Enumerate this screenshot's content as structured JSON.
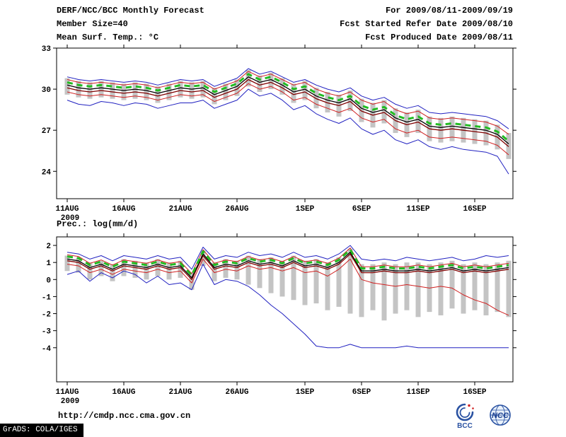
{
  "header": {
    "title": "DERF/NCC/BCC Monthly Forecast",
    "member_size": "Member Size=40",
    "for_range": "For 2009/08/11-2009/09/19",
    "refer_date": "Fcst Started Refer Date 2009/08/10",
    "produced_date": "Fcst Produced Date 2009/08/11"
  },
  "footer": {
    "url": "http://cmdp.ncc.cma.gov.cn",
    "grads": "GrADS: COLA/IGES",
    "bcc_label": "BCC",
    "ncc_label": "NCC"
  },
  "colors": {
    "frame": "#000000",
    "spread_bar": "#c4c4c4",
    "blue": "#2020c0",
    "red": "#d02020",
    "maroon": "#800000",
    "black": "#000000",
    "green": "#22bb22",
    "logo_blue": "#2a52a2"
  },
  "chart_data": [
    {
      "id": "temperature",
      "type": "line",
      "title": "Mean Surf. Temp.: °C",
      "year_label": "2009",
      "n_days": 40,
      "x_tick_labels": [
        "11AUG",
        "16AUG",
        "21AUG",
        "26AUG",
        "1SEP",
        "6SEP",
        "11SEP",
        "16SEP"
      ],
      "x_tick_days": [
        0,
        5,
        10,
        15,
        21,
        26,
        31,
        36
      ],
      "y_ticks": [
        33,
        30,
        27,
        24
      ],
      "ylim": [
        22,
        33
      ],
      "grid": false,
      "bars": {
        "name": "ensemble-spread",
        "color": "#c4c4c4",
        "low": [
          29.6,
          29.4,
          29.3,
          29.4,
          29.3,
          29.2,
          29.3,
          29.2,
          29.0,
          29.2,
          29.4,
          29.3,
          29.4,
          28.9,
          29.2,
          29.5,
          30.2,
          29.8,
          30.0,
          29.6,
          29.0,
          29.2,
          28.6,
          28.3,
          28.0,
          28.4,
          27.6,
          27.2,
          27.5,
          26.8,
          26.5,
          26.8,
          26.2,
          26.1,
          26.2,
          26.1,
          26.0,
          25.9,
          25.6,
          24.9
        ],
        "high": [
          30.8,
          30.6,
          30.5,
          30.6,
          30.5,
          30.4,
          30.5,
          30.4,
          30.2,
          30.4,
          30.6,
          30.5,
          30.6,
          30.1,
          30.4,
          30.7,
          31.4,
          31.0,
          31.2,
          30.8,
          30.4,
          30.6,
          30.1,
          29.8,
          29.6,
          29.9,
          29.3,
          29.0,
          29.2,
          28.6,
          28.3,
          28.5,
          28.0,
          27.9,
          28.0,
          27.9,
          27.8,
          27.7,
          27.4,
          26.8
        ]
      },
      "series": [
        {
          "name": "envelope-max-blue",
          "color": "#2020c0",
          "width": 1,
          "dash": "",
          "values": [
            30.9,
            30.7,
            30.6,
            30.7,
            30.6,
            30.5,
            30.6,
            30.5,
            30.3,
            30.5,
            30.7,
            30.6,
            30.7,
            30.2,
            30.5,
            30.8,
            31.5,
            31.1,
            31.3,
            30.9,
            30.5,
            30.7,
            30.3,
            30.0,
            29.8,
            30.1,
            29.5,
            29.2,
            29.4,
            28.9,
            28.6,
            28.8,
            28.3,
            28.2,
            28.3,
            28.2,
            28.1,
            28.0,
            27.7,
            27.1
          ]
        },
        {
          "name": "envelope-min-blue",
          "color": "#2020c0",
          "width": 1,
          "dash": "",
          "values": [
            29.2,
            28.9,
            28.8,
            29.1,
            29.0,
            28.8,
            29.0,
            28.9,
            28.6,
            28.8,
            29.0,
            29.0,
            29.2,
            28.6,
            28.9,
            29.2,
            30.0,
            29.5,
            29.7,
            29.2,
            28.5,
            28.8,
            28.2,
            27.8,
            27.5,
            27.9,
            27.1,
            26.7,
            27.0,
            26.3,
            26.0,
            26.3,
            25.8,
            25.6,
            25.8,
            25.6,
            25.5,
            25.4,
            25.1,
            23.8
          ]
        },
        {
          "name": "upper-percentile-red",
          "color": "#d02020",
          "width": 1,
          "dash": "",
          "values": [
            30.7,
            30.5,
            30.4,
            30.5,
            30.4,
            30.3,
            30.4,
            30.3,
            30.1,
            30.3,
            30.5,
            30.4,
            30.5,
            30.0,
            30.3,
            30.6,
            31.3,
            30.9,
            31.1,
            30.7,
            30.3,
            30.5,
            30.0,
            29.7,
            29.5,
            29.8,
            29.2,
            28.9,
            29.1,
            28.5,
            28.2,
            28.4,
            27.9,
            27.8,
            27.9,
            27.8,
            27.7,
            27.6,
            27.3,
            26.7
          ]
        },
        {
          "name": "lower-percentile-red",
          "color": "#d02020",
          "width": 1,
          "dash": "",
          "values": [
            29.8,
            29.6,
            29.5,
            29.6,
            29.5,
            29.4,
            29.5,
            29.4,
            29.2,
            29.4,
            29.6,
            29.5,
            29.6,
            29.1,
            29.4,
            29.7,
            30.4,
            30.0,
            30.2,
            29.8,
            29.2,
            29.4,
            28.9,
            28.6,
            28.3,
            28.6,
            27.9,
            27.6,
            27.8,
            27.1,
            26.8,
            27.0,
            26.5,
            26.4,
            26.5,
            26.4,
            26.3,
            26.2,
            25.9,
            25.2
          ]
        },
        {
          "name": "control-run-maroon",
          "color": "#800000",
          "width": 1.3,
          "dash": "",
          "values": [
            30.1,
            29.9,
            29.8,
            29.9,
            29.8,
            29.7,
            29.8,
            29.7,
            29.5,
            29.7,
            29.9,
            29.8,
            29.9,
            29.4,
            29.7,
            30.0,
            30.7,
            30.3,
            30.5,
            30.1,
            29.6,
            29.8,
            29.3,
            29.0,
            28.8,
            29.1,
            28.4,
            28.1,
            28.3,
            27.7,
            27.4,
            27.6,
            27.1,
            27.0,
            27.1,
            27.0,
            26.9,
            26.8,
            26.5,
            25.8
          ]
        },
        {
          "name": "ensemble-mean-black",
          "color": "#000000",
          "width": 1.3,
          "dash": "",
          "values": [
            30.3,
            30.1,
            30.0,
            30.1,
            30.0,
            29.9,
            30.0,
            29.9,
            29.7,
            29.9,
            30.1,
            30.0,
            30.1,
            29.6,
            29.9,
            30.2,
            30.9,
            30.5,
            30.7,
            30.3,
            29.8,
            30.0,
            29.5,
            29.2,
            29.0,
            29.3,
            28.6,
            28.3,
            28.5,
            27.9,
            27.6,
            27.8,
            27.3,
            27.2,
            27.3,
            27.2,
            27.1,
            27.0,
            26.7,
            26.0
          ]
        },
        {
          "name": "calibrated-mean-green-dashed",
          "color": "#22bb22",
          "width": 3,
          "dash": "8,6",
          "values": [
            30.5,
            30.3,
            30.2,
            30.3,
            30.2,
            30.1,
            30.2,
            30.1,
            29.9,
            30.1,
            30.3,
            30.2,
            30.3,
            29.8,
            30.1,
            30.4,
            31.1,
            30.7,
            30.9,
            30.5,
            30.0,
            30.2,
            29.7,
            29.4,
            29.2,
            29.5,
            28.8,
            28.5,
            28.7,
            28.1,
            27.8,
            28.0,
            27.5,
            27.4,
            27.5,
            27.4,
            27.3,
            27.2,
            26.9,
            26.2
          ]
        }
      ]
    },
    {
      "id": "precipitation",
      "type": "line",
      "title": "Prec.: log(mm/d)",
      "year_label": "2009",
      "n_days": 40,
      "x_tick_labels": [
        "11AUG",
        "16AUG",
        "21AUG",
        "26AUG",
        "1SEP",
        "6SEP",
        "11SEP",
        "16SEP"
      ],
      "x_tick_days": [
        0,
        5,
        10,
        15,
        21,
        26,
        31,
        36
      ],
      "y_ticks": [
        2,
        1,
        0,
        -1,
        -2,
        -3,
        -4
      ],
      "ylim": [
        -6,
        2.5
      ],
      "grid": false,
      "bars": {
        "name": "ensemble-spread",
        "color": "#c4c4c4",
        "low": [
          0.5,
          0.4,
          0.0,
          0.2,
          -0.1,
          0.2,
          0.1,
          0.0,
          0.2,
          0.0,
          0.1,
          -0.6,
          0.8,
          -0.1,
          0.1,
          0.0,
          -0.3,
          -0.5,
          -0.8,
          -1.0,
          -1.2,
          -1.5,
          -1.4,
          -1.8,
          -1.6,
          -2.0,
          -2.2,
          -1.8,
          -2.4,
          -2.0,
          -1.8,
          -2.2,
          -1.9,
          -2.1,
          -1.7,
          -2.0,
          -1.8,
          -2.1,
          -1.9,
          -2.2
        ],
        "high": [
          1.4,
          1.3,
          1.0,
          1.1,
          0.9,
          1.2,
          1.1,
          1.0,
          1.2,
          1.0,
          1.1,
          0.4,
          1.7,
          1.0,
          1.2,
          1.1,
          1.4,
          1.2,
          1.3,
          1.1,
          1.4,
          1.1,
          1.2,
          1.0,
          1.3,
          1.8,
          0.9,
          0.9,
          1.0,
          0.9,
          1.0,
          1.0,
          0.9,
          1.0,
          1.1,
          0.9,
          1.0,
          0.9,
          1.0,
          1.1
        ]
      },
      "series": [
        {
          "name": "envelope-max-blue",
          "color": "#2020c0",
          "width": 1,
          "dash": "",
          "values": [
            1.6,
            1.5,
            1.2,
            1.4,
            1.1,
            1.4,
            1.3,
            1.2,
            1.4,
            1.2,
            1.3,
            0.6,
            1.9,
            1.2,
            1.4,
            1.3,
            1.6,
            1.4,
            1.5,
            1.3,
            1.6,
            1.3,
            1.4,
            1.2,
            1.5,
            2.0,
            1.2,
            1.1,
            1.2,
            1.1,
            1.3,
            1.2,
            1.1,
            1.2,
            1.3,
            1.1,
            1.2,
            1.4,
            1.3,
            1.4
          ]
        },
        {
          "name": "envelope-min-blue",
          "color": "#2020c0",
          "width": 1,
          "dash": "",
          "values": [
            0.3,
            0.5,
            -0.1,
            0.4,
            0.1,
            0.5,
            0.3,
            -0.2,
            0.2,
            -0.3,
            -0.2,
            -0.6,
            0.9,
            -0.3,
            0.0,
            -0.1,
            -0.4,
            -0.9,
            -1.5,
            -2.0,
            -2.6,
            -3.2,
            -3.9,
            -4.0,
            -4.0,
            -3.8,
            -4.0,
            -4.0,
            -4.0,
            -4.0,
            -3.9,
            -4.0,
            -4.0,
            -4.0,
            -4.0,
            -4.0,
            -4.0,
            -4.0,
            -4.0,
            -4.0
          ]
        },
        {
          "name": "upper-percentile-red",
          "color": "#d02020",
          "width": 1,
          "dash": "",
          "values": [
            1.45,
            1.35,
            0.95,
            1.15,
            0.85,
            1.15,
            1.05,
            0.95,
            1.15,
            0.95,
            1.05,
            0.35,
            1.75,
            0.95,
            1.15,
            1.05,
            1.35,
            1.15,
            1.25,
            1.05,
            1.35,
            1.05,
            1.15,
            0.95,
            1.25,
            1.85,
            0.75,
            0.75,
            0.85,
            0.75,
            0.75,
            0.85,
            0.75,
            0.85,
            0.95,
            0.75,
            0.85,
            0.75,
            0.85,
            0.95
          ]
        },
        {
          "name": "lower-percentile-red",
          "color": "#d02020",
          "width": 1,
          "dash": "",
          "values": [
            0.9,
            0.8,
            0.4,
            0.6,
            0.3,
            0.6,
            0.5,
            0.4,
            0.6,
            0.4,
            0.5,
            -0.2,
            1.2,
            0.4,
            0.6,
            0.5,
            0.8,
            0.6,
            0.7,
            0.5,
            0.7,
            0.4,
            0.5,
            0.2,
            0.6,
            1.2,
            0.0,
            -0.2,
            -0.3,
            -0.4,
            -0.3,
            -0.4,
            -0.5,
            -0.4,
            -0.5,
            -0.9,
            -1.2,
            -1.4,
            -1.8,
            -2.1
          ]
        },
        {
          "name": "control-run-maroon",
          "color": "#800000",
          "width": 1.3,
          "dash": "",
          "values": [
            1.1,
            1.0,
            0.6,
            0.8,
            0.5,
            0.8,
            0.7,
            0.6,
            0.8,
            0.6,
            0.7,
            0.0,
            1.4,
            0.6,
            0.8,
            0.7,
            1.0,
            0.8,
            0.9,
            0.7,
            1.0,
            0.7,
            0.8,
            0.6,
            0.9,
            1.5,
            0.4,
            0.4,
            0.5,
            0.4,
            0.4,
            0.5,
            0.4,
            0.5,
            0.6,
            0.4,
            0.5,
            0.4,
            0.5,
            0.6
          ]
        },
        {
          "name": "ensemble-mean-black",
          "color": "#000000",
          "width": 1.3,
          "dash": "",
          "values": [
            1.2,
            1.1,
            0.7,
            0.9,
            0.6,
            0.9,
            0.8,
            0.7,
            0.9,
            0.7,
            0.8,
            0.1,
            1.5,
            0.7,
            0.9,
            0.8,
            1.1,
            0.9,
            1.0,
            0.8,
            1.1,
            0.8,
            0.9,
            0.7,
            1.0,
            1.6,
            0.5,
            0.5,
            0.6,
            0.5,
            0.5,
            0.6,
            0.5,
            0.6,
            0.7,
            0.5,
            0.6,
            0.5,
            0.6,
            0.7
          ]
        },
        {
          "name": "calibrated-mean-green-dashed",
          "color": "#22bb22",
          "width": 3,
          "dash": "8,6",
          "values": [
            1.35,
            1.25,
            0.85,
            1.05,
            0.75,
            1.05,
            0.95,
            0.85,
            1.05,
            0.85,
            0.95,
            0.25,
            1.65,
            0.85,
            1.05,
            0.95,
            1.25,
            1.05,
            1.15,
            0.95,
            1.25,
            0.95,
            1.05,
            0.85,
            1.15,
            1.75,
            0.65,
            0.65,
            0.75,
            0.65,
            0.65,
            0.75,
            0.65,
            0.75,
            0.85,
            0.65,
            0.75,
            0.65,
            0.75,
            0.85
          ]
        }
      ]
    }
  ]
}
